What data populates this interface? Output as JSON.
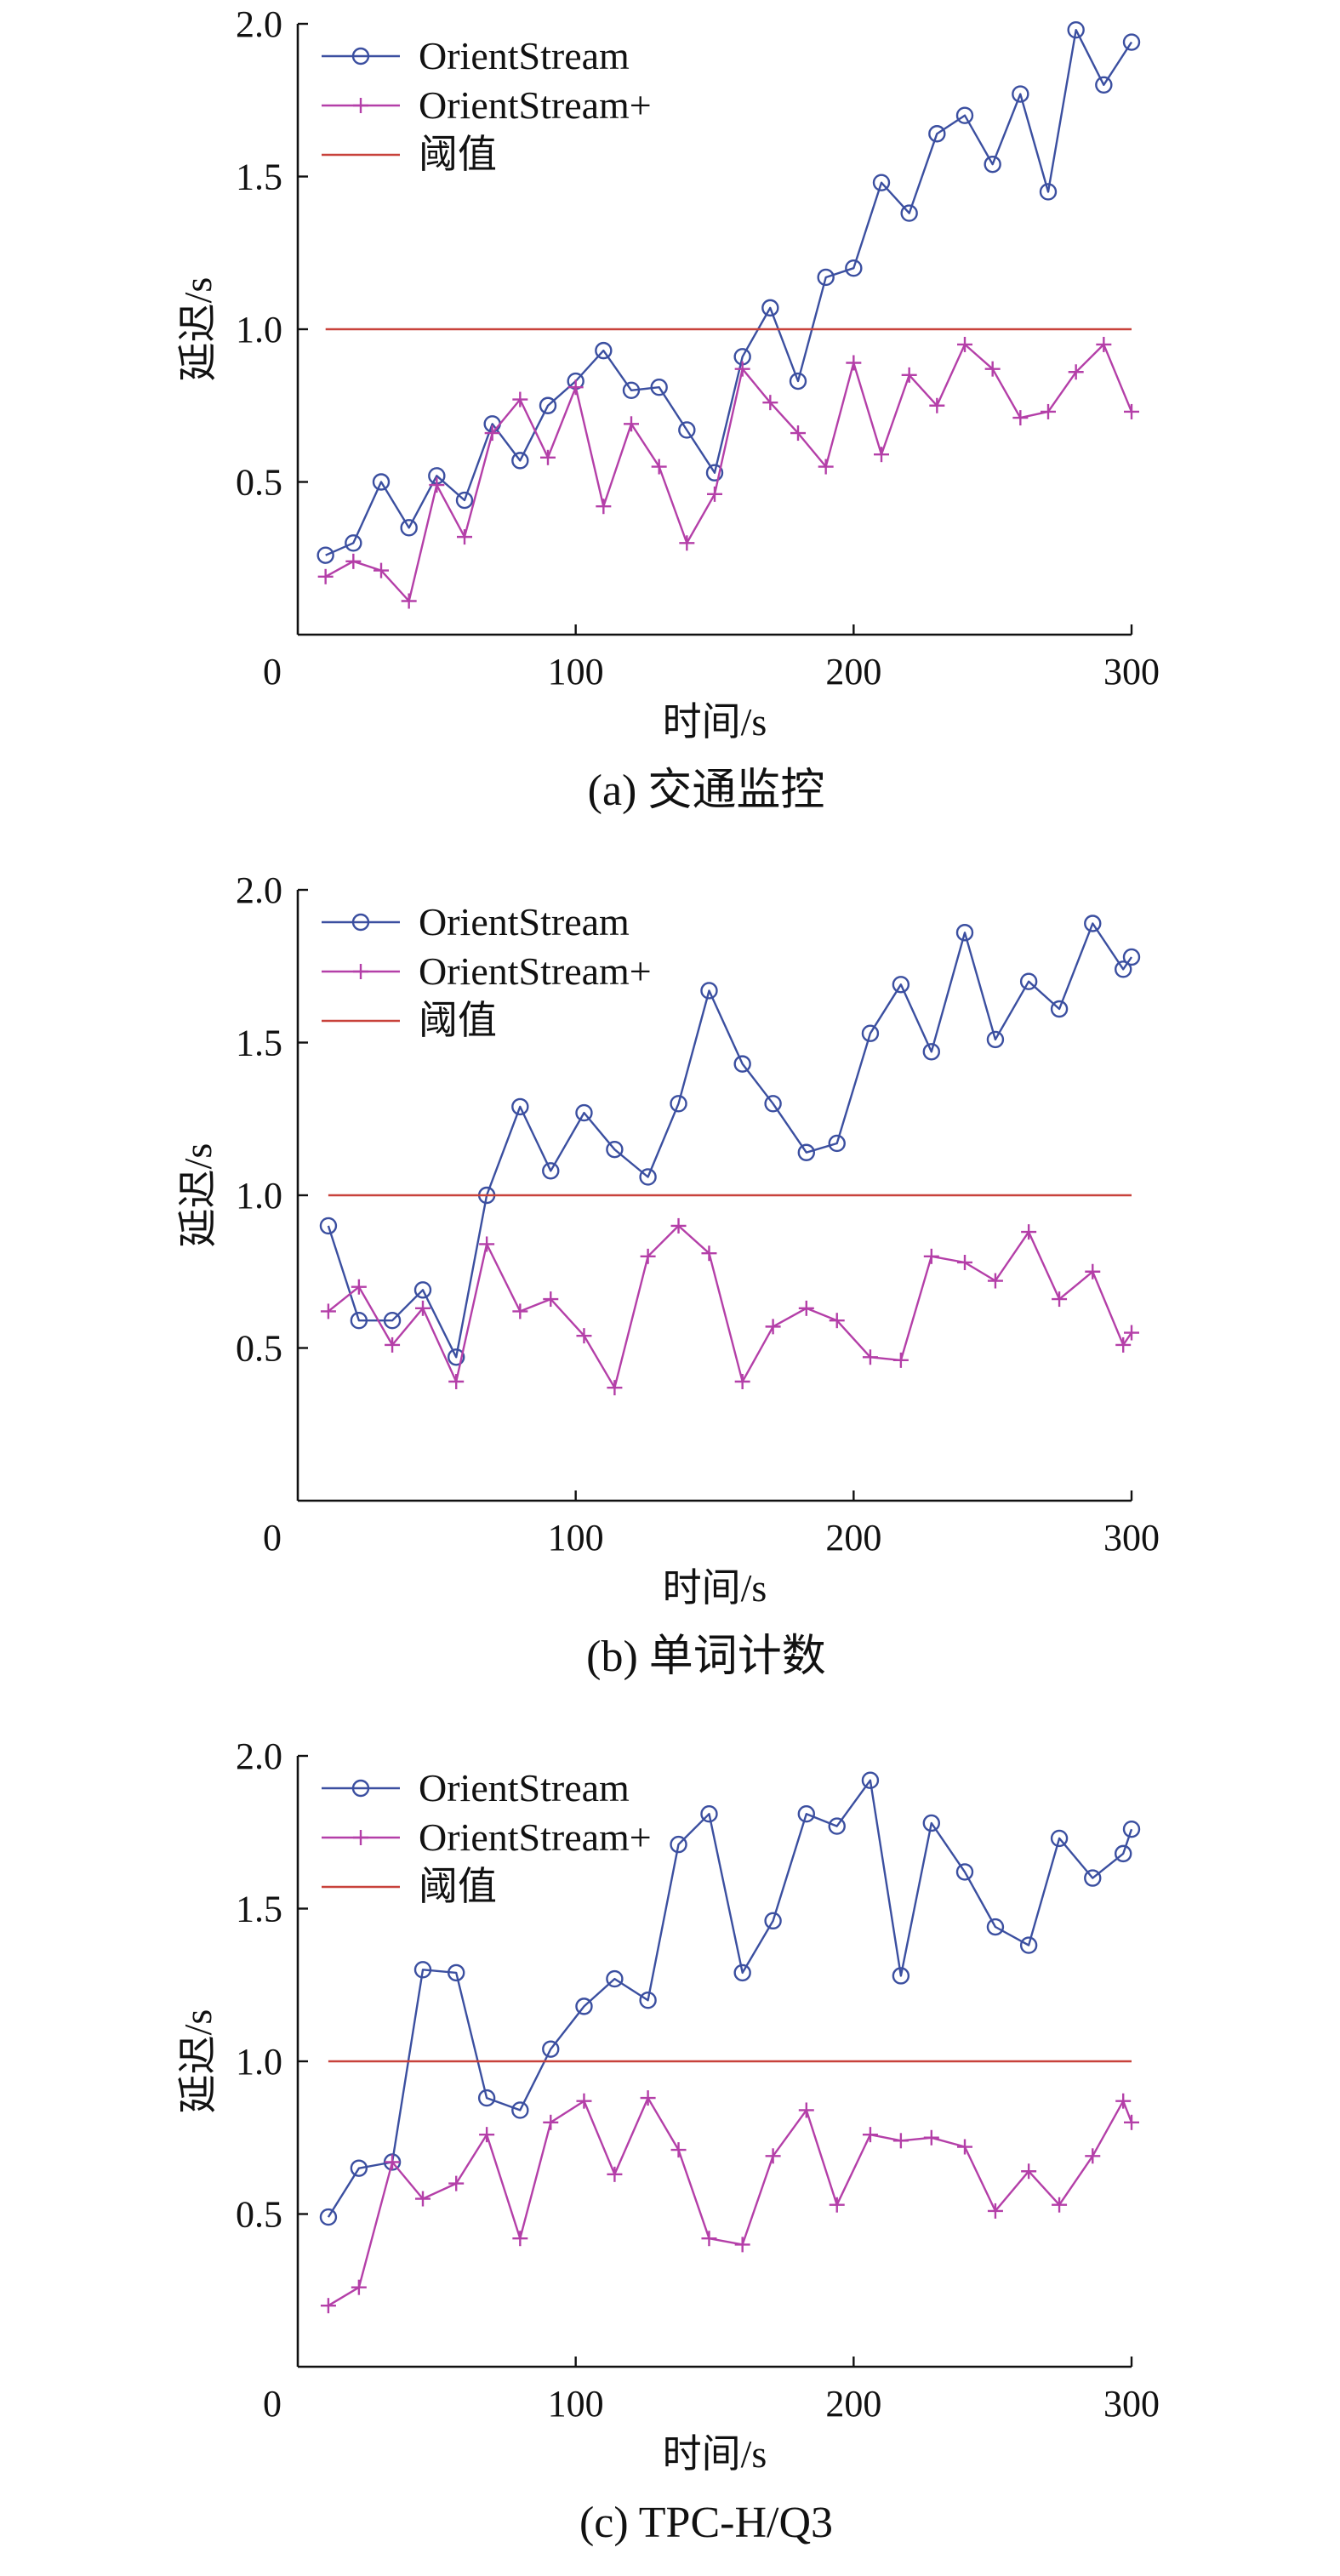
{
  "chart_data": [
    {
      "type": "line",
      "caption": "(a) 交通监控",
      "xlabel": "时间/s",
      "ylabel": "延迟/s",
      "xlim": [
        0,
        300
      ],
      "ylim": [
        0,
        2.0
      ],
      "xticks": [
        "0",
        "100",
        "200",
        "300"
      ],
      "yticks": [
        "0.5",
        "1.0",
        "1.5",
        "2.0"
      ],
      "grid": false,
      "legend_position": "top-left",
      "series": [
        {
          "name": "OrientStream",
          "color": "#3b4fa0",
          "marker": "circle",
          "x": [
            10,
            20,
            30,
            40,
            50,
            60,
            70,
            80,
            90,
            100,
            110,
            120,
            130,
            140,
            150,
            160,
            170,
            180,
            190,
            200,
            210,
            220,
            230,
            240,
            250,
            260,
            270,
            280,
            290,
            300
          ],
          "y": [
            0.26,
            0.3,
            0.5,
            0.35,
            0.52,
            0.44,
            0.69,
            0.57,
            0.75,
            0.83,
            0.93,
            0.8,
            0.81,
            0.67,
            0.53,
            0.91,
            1.07,
            0.83,
            1.17,
            1.2,
            1.48,
            1.38,
            1.64,
            1.7,
            1.54,
            1.77,
            1.45,
            1.98,
            1.8,
            1.94
          ]
        },
        {
          "name": "OrientStream+",
          "color": "#b43fa8",
          "marker": "plus",
          "x": [
            10,
            20,
            30,
            40,
            50,
            60,
            70,
            80,
            90,
            100,
            110,
            120,
            130,
            140,
            150,
            160,
            170,
            180,
            190,
            200,
            210,
            220,
            230,
            240,
            250,
            260,
            270,
            280,
            290,
            300
          ],
          "y": [
            0.19,
            0.24,
            0.21,
            0.11,
            0.49,
            0.32,
            0.66,
            0.77,
            0.58,
            0.81,
            0.42,
            0.69,
            0.55,
            0.3,
            0.46,
            0.87,
            0.76,
            0.66,
            0.55,
            0.89,
            0.59,
            0.85,
            0.75,
            0.95,
            0.87,
            0.71,
            0.73,
            0.86,
            0.95,
            0.73
          ]
        },
        {
          "name": "阈值",
          "color": "#c8423b",
          "marker": "none",
          "x": [
            10,
            300
          ],
          "y": [
            1.0,
            1.0
          ]
        }
      ]
    },
    {
      "type": "line",
      "caption": "(b) 单词计数",
      "xlabel": "时间/s",
      "ylabel": "延迟/s",
      "xlim": [
        0,
        300
      ],
      "ylim": [
        0,
        2.0
      ],
      "xticks": [
        "0",
        "100",
        "200",
        "300"
      ],
      "yticks": [
        "0.5",
        "1.0",
        "1.5",
        "2.0"
      ],
      "grid": false,
      "legend_position": "top-left",
      "series": [
        {
          "name": "OrientStream",
          "color": "#3b4fa0",
          "marker": "circle",
          "x": [
            11,
            22,
            34,
            45,
            57,
            68,
            80,
            91,
            103,
            114,
            126,
            137,
            148,
            160,
            171,
            183,
            194,
            206,
            217,
            228,
            240,
            251,
            263,
            274,
            286,
            297,
            300
          ],
          "y": [
            0.9,
            0.59,
            0.59,
            0.69,
            0.47,
            1.0,
            1.29,
            1.08,
            1.27,
            1.15,
            1.06,
            1.3,
            1.67,
            1.43,
            1.3,
            1.14,
            1.17,
            1.53,
            1.69,
            1.47,
            1.86,
            1.51,
            1.7,
            1.61,
            1.89,
            1.74,
            1.78
          ]
        },
        {
          "name": "OrientStream+",
          "color": "#b43fa8",
          "marker": "plus",
          "x": [
            11,
            22,
            34,
            45,
            57,
            68,
            80,
            91,
            103,
            114,
            126,
            137,
            148,
            160,
            171,
            183,
            194,
            206,
            217,
            228,
            240,
            251,
            263,
            274,
            286,
            297,
            300
          ],
          "y": [
            0.62,
            0.7,
            0.51,
            0.63,
            0.39,
            0.84,
            0.62,
            0.66,
            0.54,
            0.37,
            0.8,
            0.9,
            0.81,
            0.39,
            0.57,
            0.63,
            0.59,
            0.47,
            0.46,
            0.8,
            0.78,
            0.72,
            0.88,
            0.66,
            0.75,
            0.51,
            0.55
          ]
        },
        {
          "name": "阈值",
          "color": "#c8423b",
          "marker": "none",
          "x": [
            11,
            300
          ],
          "y": [
            1.0,
            1.0
          ]
        }
      ]
    },
    {
      "type": "line",
      "caption": "(c) TPC-H/Q3",
      "xlabel": "时间/s",
      "ylabel": "延迟/s",
      "xlim": [
        0,
        300
      ],
      "ylim": [
        0,
        2.0
      ],
      "xticks": [
        "0",
        "100",
        "200",
        "300"
      ],
      "yticks": [
        "0.5",
        "1.0",
        "1.5",
        "2.0"
      ],
      "grid": false,
      "legend_position": "top-left",
      "series": [
        {
          "name": "OrientStream",
          "color": "#3b4fa0",
          "marker": "circle",
          "x": [
            11,
            22,
            34,
            45,
            57,
            68,
            80,
            91,
            103,
            114,
            126,
            137,
            148,
            160,
            171,
            183,
            194,
            206,
            217,
            228,
            240,
            251,
            263,
            274,
            286,
            297,
            300
          ],
          "y": [
            0.49,
            0.65,
            0.67,
            1.3,
            1.29,
            0.88,
            0.84,
            1.04,
            1.18,
            1.27,
            1.2,
            1.71,
            1.81,
            1.29,
            1.46,
            1.81,
            1.77,
            1.92,
            1.28,
            1.78,
            1.62,
            1.44,
            1.38,
            1.73,
            1.6,
            1.68,
            1.76
          ]
        },
        {
          "name": "OrientStream+",
          "color": "#b43fa8",
          "marker": "plus",
          "x": [
            11,
            22,
            34,
            45,
            57,
            68,
            80,
            91,
            103,
            114,
            126,
            137,
            148,
            160,
            171,
            183,
            194,
            206,
            217,
            228,
            240,
            251,
            263,
            274,
            286,
            297,
            300
          ],
          "y": [
            0.2,
            0.26,
            0.67,
            0.55,
            0.6,
            0.76,
            0.42,
            0.8,
            0.87,
            0.63,
            0.88,
            0.71,
            0.42,
            0.4,
            0.69,
            0.84,
            0.53,
            0.76,
            0.74,
            0.75,
            0.72,
            0.51,
            0.64,
            0.53,
            0.69,
            0.87,
            0.8
          ]
        },
        {
          "name": "阈值",
          "color": "#c8423b",
          "marker": "none",
          "x": [
            11,
            300
          ],
          "y": [
            1.0,
            1.0
          ]
        }
      ]
    }
  ]
}
